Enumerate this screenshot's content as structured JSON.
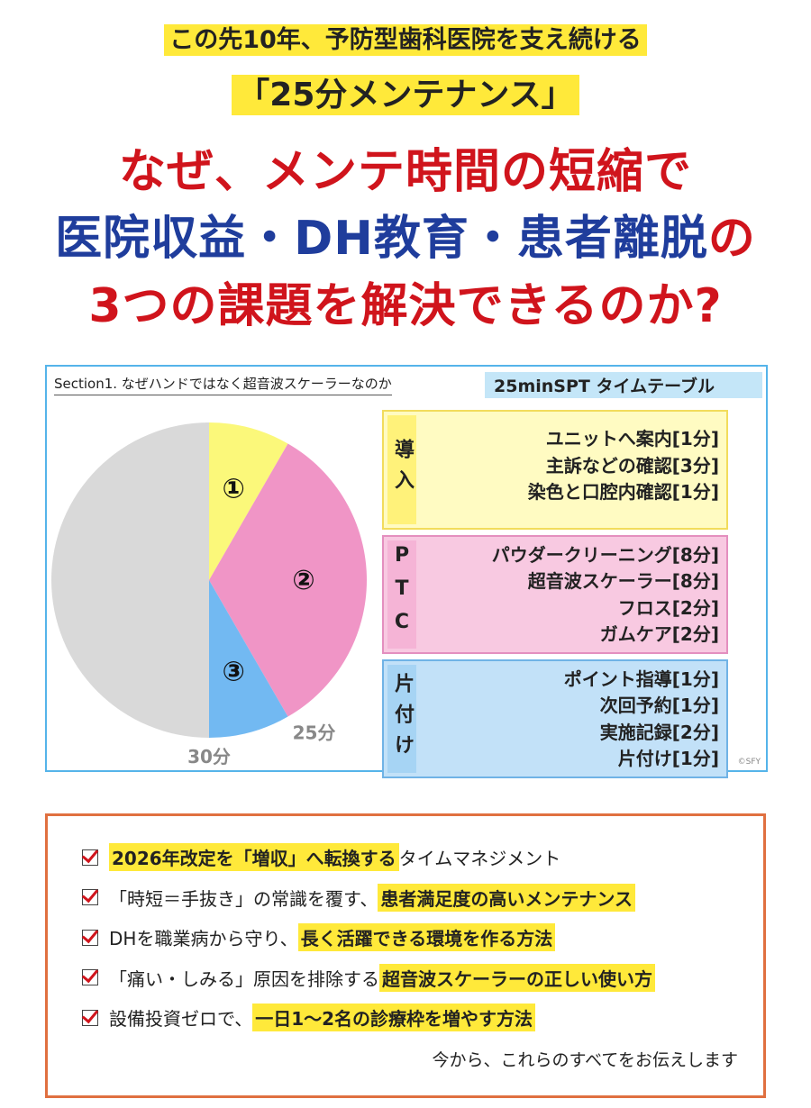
{
  "header": {
    "line1": "この先10年、予防型歯科医院を支え続ける",
    "line2": "「25分メンテナンス」",
    "headline": [
      [
        {
          "text": "なぜ、メンテ時間の短縮で",
          "color": "#d0141c"
        }
      ],
      [
        {
          "text": "医院収益・DH教育・患者離脱",
          "color": "#1f3d9c"
        },
        {
          "text": "の",
          "color": "#d0141c"
        }
      ],
      [
        {
          "text": "3つの課題を解決できるのか?",
          "color": "#d0141c"
        }
      ]
    ]
  },
  "section": {
    "label": "Section1. なぜハンドではなく超音波スケーラーなのか",
    "table_title": "25minSPT タイムテーブル",
    "copyright": "©SFY",
    "groups": [
      {
        "label": "導入",
        "items": [
          "ユニットへ案内[1分]",
          "主訴などの確認[3分]",
          "染色と口腔内確認[1分]"
        ]
      },
      {
        "label": "PTC",
        "items": [
          "パウダークリーニング[8分]",
          "超音波スケーラー[8分]",
          "フロス[2分]",
          "ガムケア[2分]"
        ]
      },
      {
        "label": "片付け",
        "items": [
          "ポイント指導[1分]",
          "次回予約[1分]",
          "実施記録[2分]",
          "片付け[1分]"
        ]
      }
    ]
  },
  "chart_data": {
    "type": "pie",
    "categories": [
      "①",
      "②",
      "③",
      null
    ],
    "values": [
      5,
      20,
      5,
      30
    ],
    "colors": [
      "#fbf87a",
      "#f095c6",
      "#72b9f2",
      "#d9d9d9"
    ],
    "annotations": [
      {
        "value": 25,
        "label": "25分"
      },
      {
        "value": 30,
        "label": "30分"
      }
    ]
  },
  "checklist": {
    "items": [
      [
        {
          "text": "2026年改定を「増収」へ転換する",
          "highlight": true
        },
        {
          "text": "タイムマネジメント",
          "highlight": false
        }
      ],
      [
        {
          "text": "「時短＝手抜き」の常識を覆す、",
          "highlight": false
        },
        {
          "text": "患者満足度の高いメンテナンス",
          "highlight": true
        }
      ],
      [
        {
          "text": "DHを職業病から守り、",
          "highlight": false
        },
        {
          "text": "長く活躍できる環境を作る方法",
          "highlight": true
        }
      ],
      [
        {
          "text": "「痛い・しみる」原因を排除する",
          "highlight": false
        },
        {
          "text": "超音波スケーラーの正しい使い方",
          "highlight": true
        }
      ],
      [
        {
          "text": "設備投資ゼロで、",
          "highlight": false
        },
        {
          "text": "一日1～2名の診療枠を増やす方法",
          "highlight": true
        }
      ]
    ],
    "closing": "今から、これらのすべてをお伝えします"
  }
}
